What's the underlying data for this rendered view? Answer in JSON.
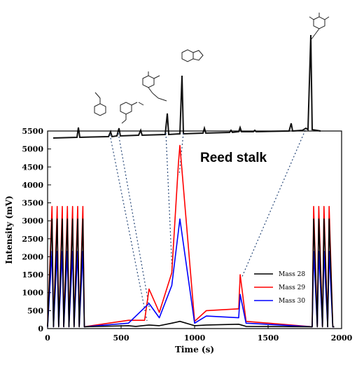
{
  "chart_data": {
    "type": "line",
    "title": "",
    "annotation": "Reed stalk",
    "xlabel": "Time (s)",
    "ylabel": "Intensity (mV)",
    "xlim": [
      0,
      2000
    ],
    "ylim": [
      0,
      5500
    ],
    "x_ticks": [
      0,
      500,
      1000,
      1500,
      2000
    ],
    "y_ticks": [
      0,
      500,
      1000,
      1500,
      2000,
      2500,
      3000,
      3500,
      4000,
      4500,
      5000,
      5500
    ],
    "grid": false,
    "legend_position": "bottom-right",
    "series": [
      {
        "name": "Mass 28",
        "color": "#000000",
        "x": [
          0,
          30,
          40,
          65,
          75,
          100,
          110,
          135,
          145,
          170,
          180,
          205,
          215,
          240,
          250,
          550,
          600,
          690,
          760,
          845,
          900,
          1000,
          1080,
          1300,
          1350,
          1800,
          1810,
          1835,
          1845,
          1870,
          1880,
          1905,
          1915,
          1940,
          1950
        ],
        "values": [
          50,
          3050,
          50,
          3050,
          50,
          3050,
          50,
          3050,
          50,
          3050,
          50,
          3050,
          50,
          3050,
          50,
          80,
          60,
          100,
          80,
          150,
          200,
          80,
          100,
          120,
          60,
          50,
          3050,
          50,
          3050,
          50,
          3050,
          50,
          3050,
          50,
          50
        ]
      },
      {
        "name": "Mass 29",
        "color": "#ff0000",
        "x": [
          0,
          30,
          40,
          65,
          75,
          100,
          110,
          135,
          145,
          170,
          180,
          205,
          215,
          240,
          250,
          550,
          660,
          690,
          760,
          845,
          890,
          900,
          1000,
          1080,
          1300,
          1310,
          1350,
          1800,
          1810,
          1835,
          1845,
          1870,
          1880,
          1905,
          1915,
          1940,
          1950
        ],
        "values": [
          50,
          3400,
          50,
          3400,
          50,
          3400,
          50,
          3400,
          50,
          3400,
          50,
          3400,
          50,
          3400,
          50,
          230,
          230,
          1100,
          450,
          1550,
          4600,
          5100,
          200,
          500,
          550,
          1500,
          200,
          50,
          3400,
          50,
          3400,
          50,
          3400,
          50,
          3400,
          50,
          50
        ]
      },
      {
        "name": "Mass 30",
        "color": "#0000ff",
        "x": [
          0,
          30,
          40,
          65,
          75,
          100,
          110,
          135,
          145,
          170,
          180,
          205,
          215,
          240,
          250,
          550,
          690,
          760,
          845,
          900,
          1000,
          1080,
          1300,
          1310,
          1350,
          1800,
          1810,
          1835,
          1845,
          1870,
          1880,
          1905,
          1915,
          1940,
          1950
        ],
        "values": [
          50,
          2150,
          50,
          2150,
          50,
          2150,
          50,
          2150,
          50,
          2150,
          50,
          2150,
          50,
          2150,
          50,
          150,
          700,
          300,
          1200,
          3050,
          150,
          350,
          300,
          950,
          150,
          50,
          2150,
          50,
          2150,
          50,
          2150,
          50,
          2150,
          50,
          50
        ]
      }
    ]
  }
}
